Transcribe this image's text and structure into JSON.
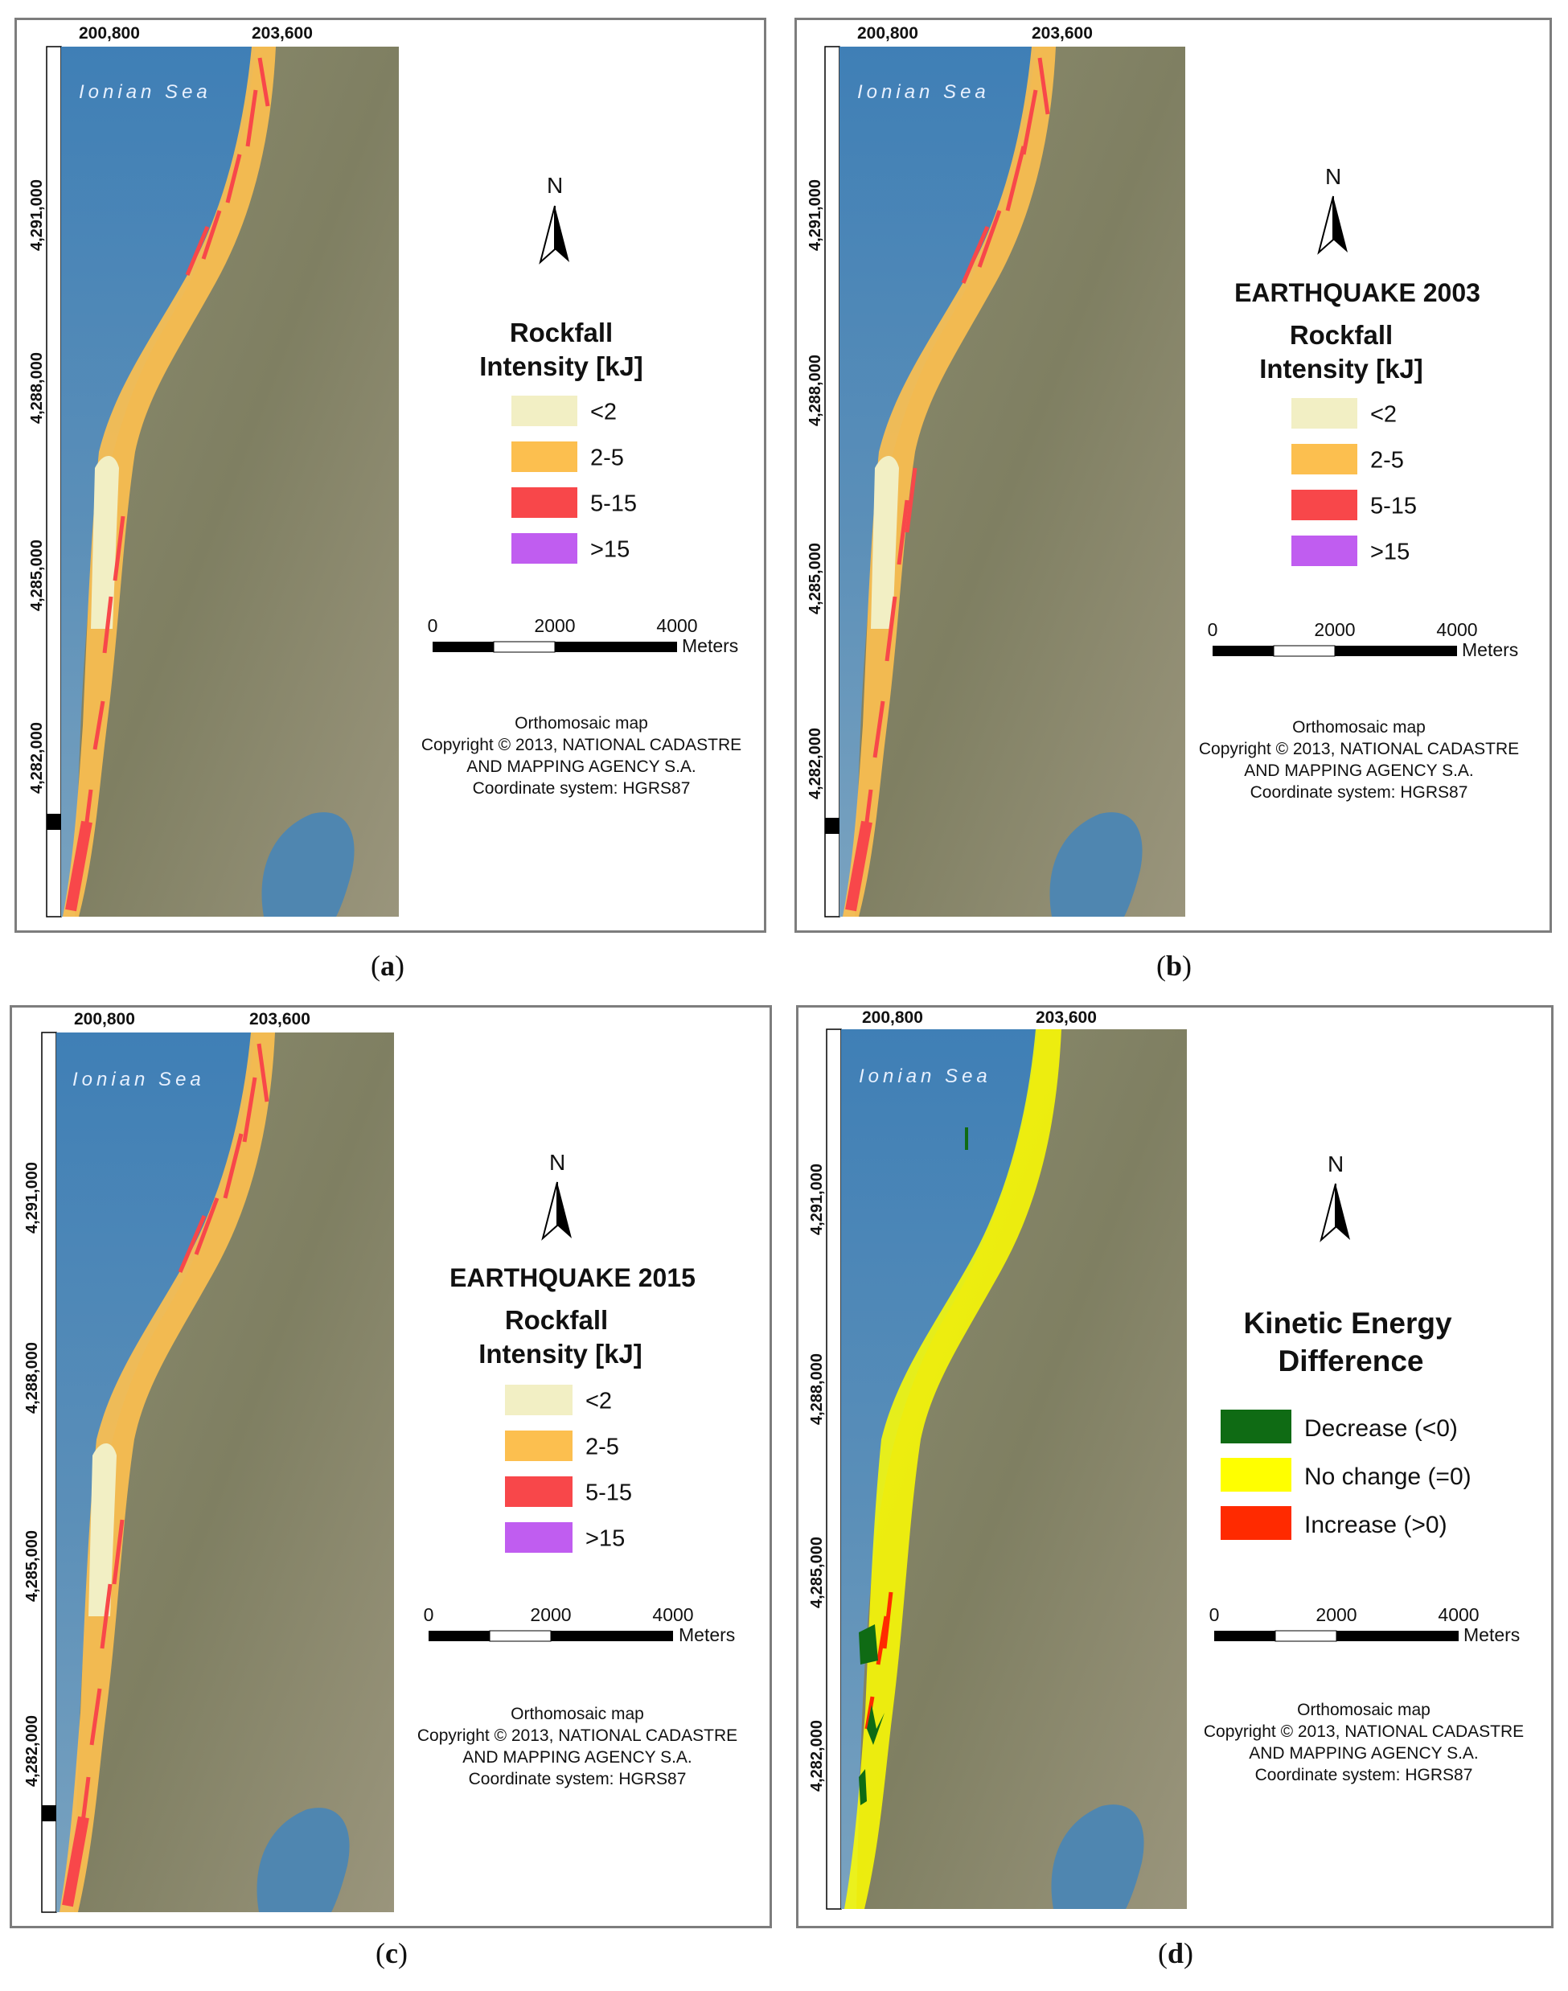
{
  "panels": [
    {
      "id": "a",
      "map": {
        "x_ticks": [
          "200,800",
          "203,600"
        ],
        "y_ticks": [
          "4,291,000",
          "4,288,000",
          "4,285,000",
          "4,282,000"
        ],
        "sea_label": "Ionian Sea",
        "band_scheme": "intensity"
      },
      "north_label": "N",
      "earthquake_title": "",
      "legend": {
        "title_line1": "Rockfall",
        "title_line2": "Intensity [kJ]",
        "items": [
          {
            "label": "<2",
            "color": "#f2efc4"
          },
          {
            "label": "2-5",
            "color": "#fcbf4f"
          },
          {
            "label": "5-15",
            "color": "#f8474a"
          },
          {
            "label": ">15",
            "color": "#c05df0"
          }
        ]
      },
      "scale": {
        "ticks": [
          "0",
          "2000",
          "4000"
        ],
        "unit": "Meters"
      },
      "credits": [
        "Orthomosaic map",
        "Copyright © 2013, NATIONAL CADASTRE",
        "AND MAPPING AGENCY S.A.",
        "Coordinate system: HGRS87"
      ],
      "caption": "a"
    },
    {
      "id": "b",
      "map": {
        "x_ticks": [
          "200,800",
          "203,600"
        ],
        "y_ticks": [
          "4,291,000",
          "4,288,000",
          "4,285,000",
          "4,282,000"
        ],
        "sea_label": "Ionian Sea",
        "band_scheme": "intensity"
      },
      "north_label": "N",
      "earthquake_title": "EARTHQUAKE 2003",
      "legend": {
        "title_line1": "Rockfall",
        "title_line2": "Intensity [kJ]",
        "items": [
          {
            "label": "<2",
            "color": "#f2efc4"
          },
          {
            "label": "2-5",
            "color": "#fcbf4f"
          },
          {
            "label": "5-15",
            "color": "#f8474a"
          },
          {
            "label": ">15",
            "color": "#c05df0"
          }
        ]
      },
      "scale": {
        "ticks": [
          "0",
          "2000",
          "4000"
        ],
        "unit": "Meters"
      },
      "credits": [
        "Orthomosaic map",
        "Copyright © 2013, NATIONAL CADASTRE",
        "AND MAPPING AGENCY S.A.",
        "Coordinate system: HGRS87"
      ],
      "caption": "b"
    },
    {
      "id": "c",
      "map": {
        "x_ticks": [
          "200,800",
          "203,600"
        ],
        "y_ticks": [
          "4,291,000",
          "4,288,000",
          "4,285,000",
          "4,282,000"
        ],
        "sea_label": "Ionian Sea",
        "band_scheme": "intensity"
      },
      "north_label": "N",
      "earthquake_title": "EARTHQUAKE 2015",
      "legend": {
        "title_line1": "Rockfall",
        "title_line2": "Intensity [kJ]",
        "items": [
          {
            "label": "<2",
            "color": "#f2efc4"
          },
          {
            "label": "2-5",
            "color": "#fcbf4f"
          },
          {
            "label": "5-15",
            "color": "#f8474a"
          },
          {
            "label": ">15",
            "color": "#c05df0"
          }
        ]
      },
      "scale": {
        "ticks": [
          "0",
          "2000",
          "4000"
        ],
        "unit": "Meters"
      },
      "credits": [
        "Orthomosaic map",
        "Copyright © 2013, NATIONAL CADASTRE",
        "AND MAPPING AGENCY S.A.",
        "Coordinate system: HGRS87"
      ],
      "caption": "c"
    },
    {
      "id": "d",
      "map": {
        "x_ticks": [
          "200,800",
          "203,600"
        ],
        "y_ticks": [
          "4,291,000",
          "4,288,000",
          "4,285,000",
          "4,282,000"
        ],
        "sea_label": "Ionian Sea",
        "band_scheme": "difference"
      },
      "north_label": "N",
      "earthquake_title": "",
      "legend": {
        "title_line1": "Kinetic Energy",
        "title_line2": "Difference",
        "items": [
          {
            "label": "Decrease (<0)",
            "color": "#0f6b14"
          },
          {
            "label": "No change (=0)",
            "color": "#ffff00"
          },
          {
            "label": "Increase (>0)",
            "color": "#ff2a00"
          }
        ]
      },
      "scale": {
        "ticks": [
          "0",
          "2000",
          "4000"
        ],
        "unit": "Meters"
      },
      "credits": [
        "Orthomosaic map",
        "Copyright © 2013, NATIONAL CADASTRE",
        "AND MAPPING AGENCY S.A.",
        "Coordinate system: HGRS87"
      ],
      "caption": "d"
    }
  ]
}
